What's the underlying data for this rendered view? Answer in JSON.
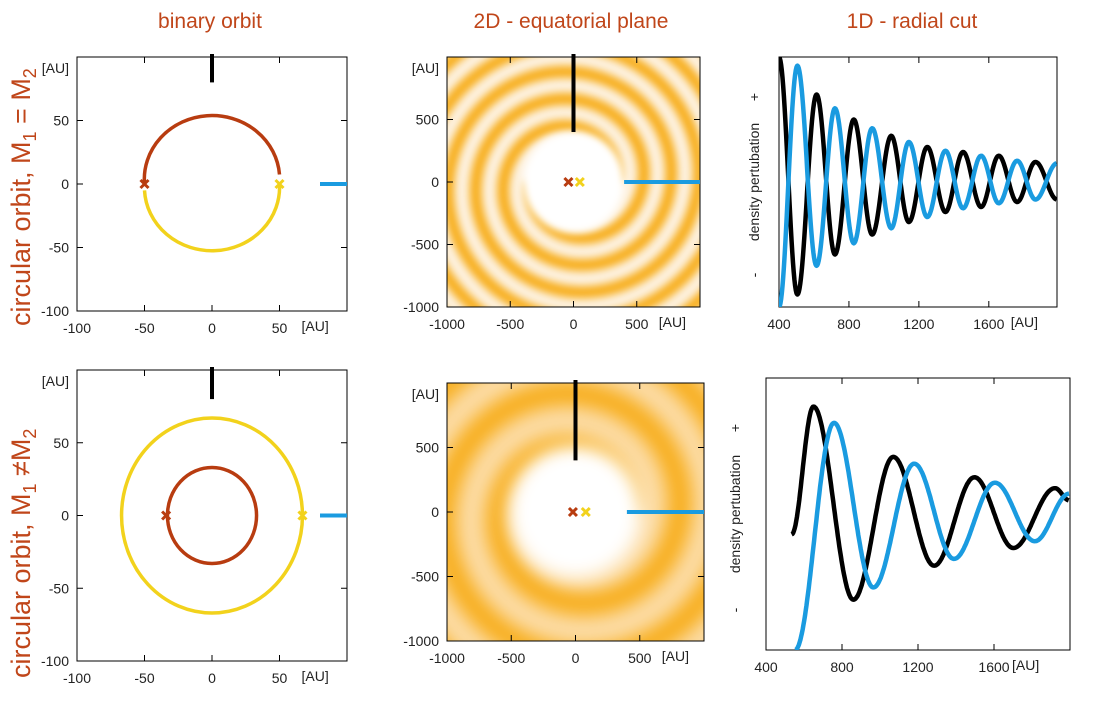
{
  "column_titles": [
    "binary orbit",
    "2D - equatorial plane",
    "1D - radial cut"
  ],
  "row_labels": [
    {
      "text": "circular orbit,  M",
      "sub1": "1",
      "mid": " = M",
      "sub2": "2"
    },
    {
      "text": "circular orbit,  M",
      "sub1": "1",
      "mid": " ≠M",
      "sub2": "2"
    }
  ],
  "colors": {
    "title": "#c0461a",
    "star1": "#b83c10",
    "star2": "#f2d21c",
    "cut_vertical": "#000000",
    "cut_horizontal": "#1a9be0",
    "density": "#f7a500"
  },
  "chart_data": [
    {
      "type": "line",
      "panel": "binary orbit, M1 = M2",
      "xlim": [
        -100,
        100
      ],
      "ylim": [
        -100,
        100
      ],
      "xticks": [
        -100,
        -50,
        0,
        50
      ],
      "yticks": [
        -100,
        -50,
        0,
        50
      ],
      "x_unit": "[AU]",
      "y_unit": "[AU]",
      "orbits": [
        {
          "name": "star 1 orbit",
          "color": "#b83c10",
          "cx": 0,
          "cy": 0,
          "r": 50,
          "half": "upper"
        },
        {
          "name": "star 2 orbit",
          "color": "#f2d21c",
          "cx": 0,
          "cy": 0,
          "r": 50,
          "half": "lower"
        }
      ],
      "markers": [
        {
          "name": "star 1",
          "x": -50,
          "y": 0,
          "color": "#b83c10"
        },
        {
          "name": "star 2",
          "x": 50,
          "y": 0,
          "color": "#f2d21c"
        }
      ],
      "cuts": [
        {
          "name": "vertical cut",
          "color": "#000000",
          "x": [
            0,
            0
          ],
          "y": [
            80,
            100
          ]
        },
        {
          "name": "horizontal cut",
          "color": "#1a9be0",
          "x": [
            80,
            100
          ],
          "y": [
            0,
            0
          ]
        }
      ]
    },
    {
      "type": "heatmap",
      "panel": "2D equatorial plane, M1 = M2",
      "xlim": [
        -1000,
        1000
      ],
      "ylim": [
        -1000,
        1000
      ],
      "xticks": [
        -1000,
        -500,
        0,
        500
      ],
      "yticks": [
        -1000,
        -500,
        0,
        500
      ],
      "x_unit": "[AU]",
      "y_unit": "[AU]",
      "inner_hole_radius": 400,
      "spiral_arms": 2,
      "wavelength": 218,
      "background": "#fdf1de",
      "markers": [
        {
          "name": "star 1",
          "x": -40,
          "y": 0,
          "color": "#b83c10"
        },
        {
          "name": "star 2",
          "x": 50,
          "y": 0,
          "color": "#f2d21c"
        }
      ],
      "cuts": [
        {
          "name": "vertical cut",
          "color": "#000000",
          "x": [
            0,
            0
          ],
          "y": [
            400,
            1000
          ]
        },
        {
          "name": "horizontal cut",
          "color": "#1a9be0",
          "x": [
            400,
            1000
          ],
          "y": [
            0,
            0
          ]
        }
      ]
    },
    {
      "type": "line",
      "panel": "1D radial cut, M1 = M2",
      "xlim": [
        400,
        1990
      ],
      "ylim": [
        -1,
        1
      ],
      "xticks": [
        400,
        800,
        1200,
        1600
      ],
      "x_unit": "[AU]",
      "ylabel": "density pertubation",
      "y_plus": "+",
      "y_minus": "-",
      "series": [
        {
          "name": "vertical cut",
          "color": "#000000",
          "extrema": [
            [
              400,
              1.0
            ],
            [
              505,
              -0.9
            ],
            [
              615,
              0.7
            ],
            [
              720,
              -0.58
            ],
            [
              828,
              0.5
            ],
            [
              933,
              -0.42
            ],
            [
              1042,
              0.37
            ],
            [
              1143,
              -0.32
            ],
            [
              1248,
              0.28
            ],
            [
              1352,
              -0.24
            ],
            [
              1453,
              0.24
            ],
            [
              1556,
              -0.2
            ],
            [
              1657,
              0.21
            ],
            [
              1762,
              -0.16
            ],
            [
              1867,
              0.16
            ],
            [
              1990,
              -0.14
            ]
          ]
        },
        {
          "name": "horizontal cut",
          "color": "#1a9be0",
          "extrema": [
            [
              400,
              -1.0
            ],
            [
              505,
              0.93
            ],
            [
              615,
              -0.67
            ],
            [
              720,
              0.59
            ],
            [
              828,
              -0.49
            ],
            [
              933,
              0.43
            ],
            [
              1042,
              -0.37
            ],
            [
              1143,
              0.32
            ],
            [
              1248,
              -0.28
            ],
            [
              1352,
              0.25
            ],
            [
              1453,
              -0.21
            ],
            [
              1556,
              0.21
            ],
            [
              1657,
              -0.17
            ],
            [
              1762,
              0.17
            ],
            [
              1867,
              -0.14
            ],
            [
              1990,
              0.15
            ]
          ]
        }
      ]
    },
    {
      "type": "line",
      "panel": "binary orbit, M1 != M2",
      "xlim": [
        -100,
        100
      ],
      "ylim": [
        -100,
        100
      ],
      "xticks": [
        -100,
        -50,
        0,
        50
      ],
      "yticks": [
        -100,
        -50,
        0,
        50
      ],
      "x_unit": "[AU]",
      "y_unit": "[AU]",
      "orbits": [
        {
          "name": "star 2 orbit",
          "color": "#f2d21c",
          "cx": 0,
          "cy": 0,
          "r": 67,
          "half": "full"
        },
        {
          "name": "star 1 orbit",
          "color": "#b83c10",
          "cx": 0,
          "cy": 0,
          "r": 33,
          "half": "full"
        }
      ],
      "markers": [
        {
          "name": "star 1",
          "x": -34,
          "y": 0,
          "color": "#b83c10"
        },
        {
          "name": "star 2",
          "x": 67,
          "y": 0,
          "color": "#f2d21c"
        }
      ],
      "cuts": [
        {
          "name": "vertical cut",
          "color": "#000000",
          "x": [
            0,
            0
          ],
          "y": [
            80,
            100
          ]
        },
        {
          "name": "horizontal cut",
          "color": "#1a9be0",
          "x": [
            80,
            100
          ],
          "y": [
            0,
            0
          ]
        }
      ]
    },
    {
      "type": "heatmap",
      "panel": "2D equatorial plane, M1 != M2",
      "xlim": [
        -1000,
        1000
      ],
      "ylim": [
        -1000,
        1000
      ],
      "xticks": [
        -1000,
        -500,
        0,
        500
      ],
      "yticks": [
        -1000,
        -500,
        0,
        500
      ],
      "x_unit": "[AU]",
      "y_unit": "[AU]",
      "inner_hole_radius": 515,
      "spiral_arms": 1,
      "wavelength": 425,
      "background": "#fcdca6",
      "markers": [
        {
          "name": "star 1",
          "x": -20,
          "y": 0,
          "color": "#b83c10"
        },
        {
          "name": "star 2",
          "x": 80,
          "y": 0,
          "color": "#f2d21c"
        }
      ],
      "cuts": [
        {
          "name": "vertical cut",
          "color": "#000000",
          "x": [
            0,
            0
          ],
          "y": [
            400,
            1000
          ]
        },
        {
          "name": "horizontal cut",
          "color": "#1a9be0",
          "x": [
            400,
            1000
          ],
          "y": [
            0,
            0
          ]
        }
      ]
    },
    {
      "type": "line",
      "panel": "1D radial cut, M1 != M2",
      "xlim": [
        400,
        2000
      ],
      "ylim": [
        -1,
        1
      ],
      "xticks": [
        400,
        800,
        1200,
        1600
      ],
      "x_unit": "[AU]",
      "ylabel": "density pertubation",
      "y_plus": "+",
      "y_minus": "-",
      "series": [
        {
          "name": "vertical cut",
          "color": "#000000",
          "extrema": [
            [
              535,
              -0.15
            ],
            [
              650,
              0.79
            ],
            [
              860,
              -0.63
            ],
            [
              1070,
              0.42
            ],
            [
              1285,
              -0.38
            ],
            [
              1497,
              0.27
            ],
            [
              1702,
              -0.25
            ],
            [
              1921,
              0.19
            ],
            [
              1996,
              0.1
            ]
          ]
        },
        {
          "name": "horizontal cut",
          "color": "#1a9be0",
          "extrema": [
            [
              553,
              -1.0
            ],
            [
              758,
              0.67
            ],
            [
              965,
              -0.54
            ],
            [
              1180,
              0.37
            ],
            [
              1389,
              -0.33
            ],
            [
              1605,
              0.23
            ],
            [
              1815,
              -0.2
            ],
            [
              1996,
              0.15
            ]
          ]
        }
      ]
    }
  ]
}
